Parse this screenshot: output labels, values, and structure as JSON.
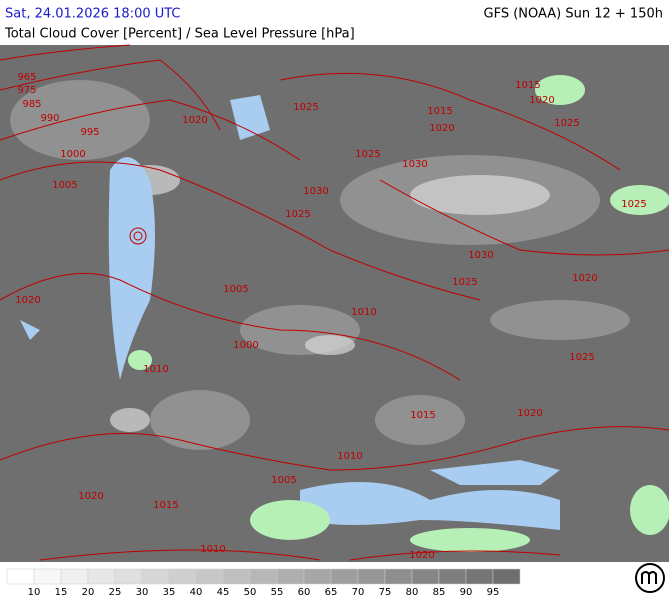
{
  "header": {
    "run_time": "Sat, 24.01.2026 18:00 UTC",
    "model": "GFS (NOAA) Sun 12 + 150h",
    "subtitle": "Total Cloud Cover [Percent] / Sea Level Pressure [hPa]"
  },
  "isobar_labels": [
    965,
    975,
    985,
    990,
    995,
    1000,
    1005,
    1020,
    1025,
    1025,
    1030,
    1025,
    1030,
    1015,
    1020,
    1015,
    1020,
    1025,
    1025,
    1030,
    1025,
    1020,
    1020,
    1005,
    1010,
    1000,
    1010,
    1025,
    1015,
    1020,
    1010,
    1005,
    1020,
    1015,
    1010,
    1020
  ],
  "legend": {
    "values": [
      10,
      15,
      20,
      25,
      30,
      35,
      40,
      45,
      50,
      55,
      60,
      65,
      70,
      75,
      80,
      85,
      90,
      95
    ]
  }
}
